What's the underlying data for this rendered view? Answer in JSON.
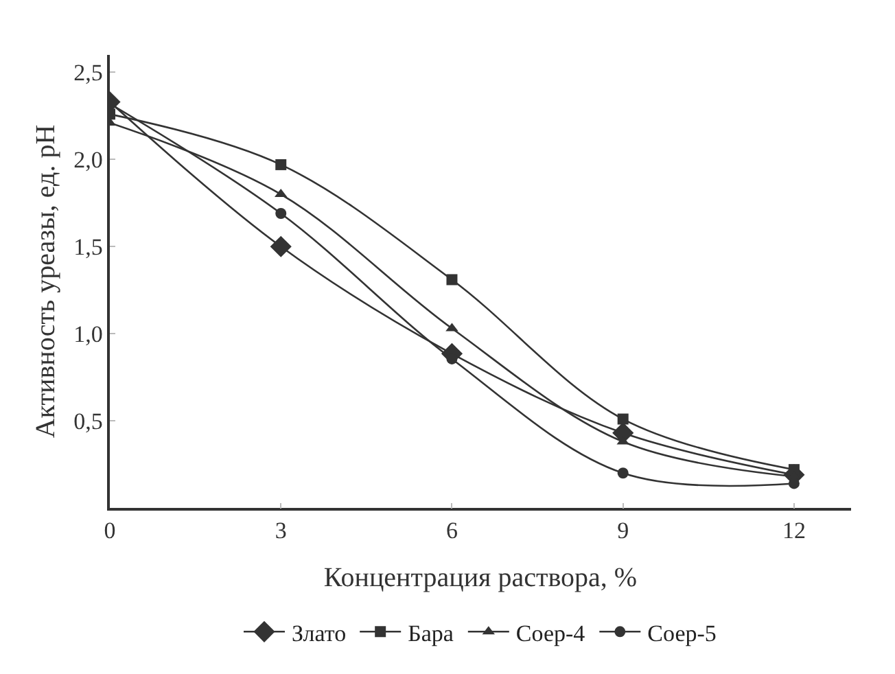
{
  "chart_data": {
    "type": "line",
    "xlabel": "Концентрация раствора, %",
    "ylabel": "Активность уреазы, ед. pH",
    "x": [
      0,
      3,
      6,
      9,
      12
    ],
    "series": [
      {
        "name": "Злато",
        "color": "#333333",
        "marker": "diamond",
        "values": [
          2.33,
          1.5,
          0.885,
          0.43,
          0.19
        ]
      },
      {
        "name": "Бара",
        "color": "#333333",
        "marker": "square",
        "values": [
          2.26,
          1.97,
          1.31,
          0.51,
          0.22
        ]
      },
      {
        "name": "Соер-4",
        "color": "#333333",
        "marker": "triangle",
        "values": [
          2.21,
          1.8,
          1.03,
          0.38,
          0.18
        ]
      },
      {
        "name": "Соер-5",
        "color": "#333333",
        "marker": "circle",
        "values": [
          2.32,
          1.69,
          0.855,
          0.2,
          0.14
        ]
      }
    ],
    "xlim": [
      0,
      13
    ],
    "ylim": [
      0,
      2.6
    ],
    "xticks": [
      0,
      3,
      6,
      9,
      12
    ],
    "yticks": [
      {
        "value": 0.5,
        "label": "0,5"
      },
      {
        "value": 1.0,
        "label": "1,0"
      },
      {
        "value": 1.5,
        "label": "1,5"
      },
      {
        "value": 2.0,
        "label": "2,0"
      },
      {
        "value": 2.5,
        "label": "2,5"
      }
    ],
    "grid": false,
    "legend": "bottom"
  }
}
